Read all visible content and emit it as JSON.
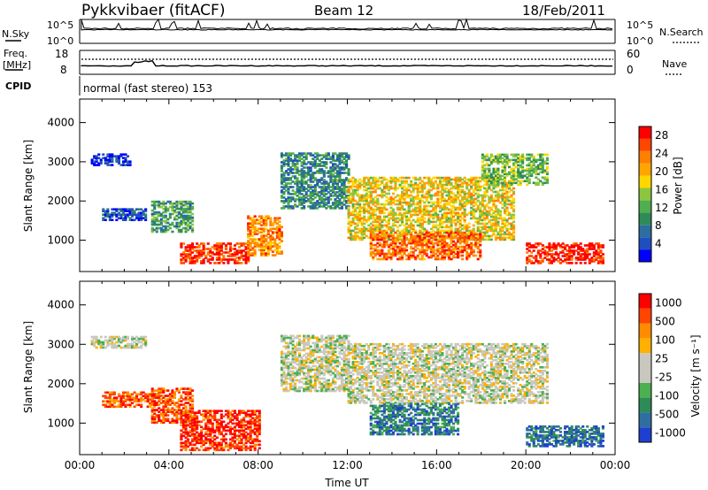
{
  "header": {
    "station": "Pykkvibaer (fitACF)",
    "beam": "Beam 12",
    "date": "18/Feb/2011"
  },
  "top_panels": {
    "nsky_label": "N.Sky",
    "nsky_ticks": [
      "10^5",
      "10^0"
    ],
    "nsearch_label": "N.Search",
    "nsearch_ticks": [
      "10^5",
      "10^0"
    ],
    "freq_label_1": "Freq.",
    "freq_label_2": "[MHz]",
    "freq_ticks": [
      "18",
      "8"
    ],
    "nave_label": "Nave",
    "nave_ticks": [
      "60",
      "0"
    ],
    "cpid_label": "CPID",
    "cpid_text": "normal (fast stereo) 153"
  },
  "colors": {
    "power_scale": [
      "#0000ff",
      "#1f4fbf",
      "#2d6e9e",
      "#2e8b57",
      "#4fae4f",
      "#8cc63f",
      "#ffd700",
      "#ffa500",
      "#ff7f00",
      "#ff4500",
      "#ff0000"
    ],
    "velocity_scale": [
      "#ff0000",
      "#ff4500",
      "#ff8c00",
      "#ffb000",
      "#c8c8be",
      "#c8c8be",
      "#4caf50",
      "#2e8b57",
      "#2f6fa0",
      "#1e3fd0"
    ]
  },
  "chart_data": [
    {
      "type": "heatmap",
      "name": "power-panel",
      "ylabel": "Slant Range [km]",
      "y_ticks": [
        "1000",
        "2000",
        "3000",
        "4000"
      ],
      "ylim": [
        200,
        4600
      ],
      "x_ticks": [
        "00:00",
        "04:00",
        "08:00",
        "12:00",
        "16:00",
        "20:00",
        "00:00"
      ],
      "colorbar_label": "Power [dB]",
      "colorbar_ticks": [
        "4",
        "8",
        "12",
        "16",
        "20",
        "24",
        "28"
      ],
      "features": [
        {
          "t0": 0.5,
          "t1": 2.3,
          "r0": 2900,
          "r1": 3200,
          "level": 0.1
        },
        {
          "t0": 1.0,
          "t1": 3.0,
          "r0": 1500,
          "r1": 1800,
          "level": 0.15
        },
        {
          "t0": 3.2,
          "t1": 5.0,
          "r0": 1200,
          "r1": 2000,
          "level": 0.35
        },
        {
          "t0": 4.5,
          "t1": 7.5,
          "r0": 400,
          "r1": 900,
          "level": 0.9
        },
        {
          "t0": 7.5,
          "t1": 9.0,
          "r0": 600,
          "r1": 1600,
          "level": 0.75
        },
        {
          "t0": 9.0,
          "t1": 12.0,
          "r0": 1800,
          "r1": 3200,
          "level": 0.3
        },
        {
          "t0": 12.0,
          "t1": 19.5,
          "r0": 1000,
          "r1": 2600,
          "level": 0.6
        },
        {
          "t0": 13.0,
          "t1": 18.0,
          "r0": 500,
          "r1": 1200,
          "level": 0.8
        },
        {
          "t0": 18.0,
          "t1": 21.0,
          "r0": 2400,
          "r1": 3200,
          "level": 0.45
        },
        {
          "t0": 20.0,
          "t1": 23.5,
          "r0": 400,
          "r1": 900,
          "level": 0.95
        }
      ]
    },
    {
      "type": "heatmap",
      "name": "velocity-panel",
      "ylabel": "Slant Range [km]",
      "y_ticks": [
        "1000",
        "2000",
        "3000",
        "4000"
      ],
      "ylim": [
        200,
        4600
      ],
      "x_ticks": [
        "00:00",
        "04:00",
        "08:00",
        "12:00",
        "16:00",
        "20:00",
        "00:00"
      ],
      "xlabel": "Time UT",
      "colorbar_label": "Velocity [m s⁻¹]",
      "colorbar_ticks": [
        "1000",
        "500",
        "100",
        "25",
        "-25",
        "-100",
        "-500",
        "-1000"
      ],
      "features": [
        {
          "t0": 0.5,
          "t1": 3.0,
          "r0": 2900,
          "r1": 3200,
          "level": 0.5
        },
        {
          "t0": 1.0,
          "t1": 3.5,
          "r0": 1400,
          "r1": 1800,
          "level": 0.2
        },
        {
          "t0": 3.2,
          "t1": 5.0,
          "r0": 1000,
          "r1": 1900,
          "level": 0.15
        },
        {
          "t0": 4.5,
          "t1": 8.0,
          "r0": 300,
          "r1": 1300,
          "level": 0.1
        },
        {
          "t0": 9.0,
          "t1": 12.0,
          "r0": 1800,
          "r1": 3200,
          "level": 0.5
        },
        {
          "t0": 12.0,
          "t1": 21.0,
          "r0": 1500,
          "r1": 3000,
          "level": 0.5
        },
        {
          "t0": 13.0,
          "t1": 17.0,
          "r0": 700,
          "r1": 1500,
          "level": 0.8
        },
        {
          "t0": 20.0,
          "t1": 23.5,
          "r0": 400,
          "r1": 900,
          "level": 0.85
        }
      ]
    }
  ]
}
